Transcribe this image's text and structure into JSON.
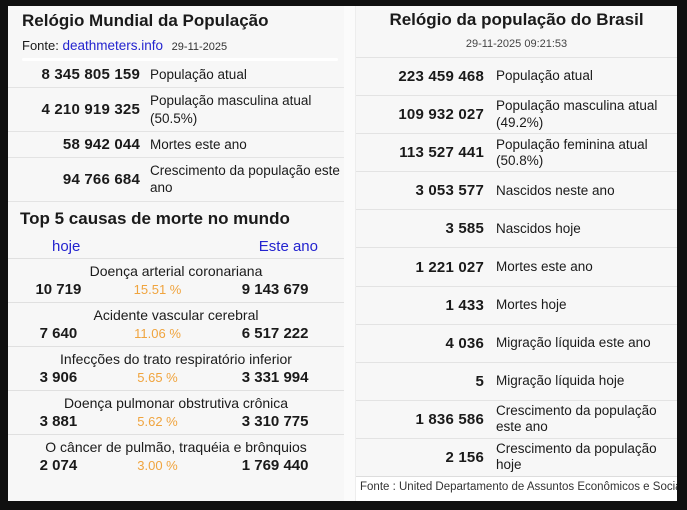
{
  "world": {
    "title": "Relógio Mundial da População",
    "source_label": "Fonte:",
    "source_link": "deathmeters.info",
    "source_date": "29-11-2025",
    "rows": [
      {
        "value": "8 345 805 159",
        "label": "População atual"
      },
      {
        "value": "4 210 919 325",
        "label": "População masculina atual (50.5%)"
      },
      {
        "value": "58 942 044",
        "label": "Mortes este ano"
      },
      {
        "value": "94 766 684",
        "label": "Crescimento da população este ano"
      }
    ],
    "top5": {
      "title": "Top 5 causas de morte no mundo",
      "col_today": "hoje",
      "col_year": "Este ano",
      "causes": [
        {
          "name": "Doença arterial coronariana",
          "today": "10 719",
          "percent": "15.51 %",
          "year": "9 143 679"
        },
        {
          "name": "Acidente vascular cerebral",
          "today": "7 640",
          "percent": "11.06 %",
          "year": "6 517 222"
        },
        {
          "name": "Infecções do trato respiratório inferior",
          "today": "3 906",
          "percent": "5.65 %",
          "year": "3 331 994"
        },
        {
          "name": "Doença pulmonar obstrutiva crônica",
          "today": "3 881",
          "percent": "5.62 %",
          "year": "3 310 775"
        },
        {
          "name": "O câncer de pulmão, traquéia e brônquios",
          "today": "2 074",
          "percent": "3.00 %",
          "year": "1 769 440"
        }
      ]
    }
  },
  "brazil": {
    "title": "Relógio da população do Brasil",
    "datetime": "29-11-2025 09:21:53",
    "rows": [
      {
        "value": "223 459 468",
        "label": "População atual"
      },
      {
        "value": "109 932 027",
        "label": "População masculina atual (49.2%)"
      },
      {
        "value": "113 527 441",
        "label": "População feminina atual (50.8%)"
      },
      {
        "value": "3 053 577",
        "label": "Nascidos neste ano"
      },
      {
        "value": "3 585",
        "label": "Nascidos hoje"
      },
      {
        "value": "1 221 027",
        "label": "Mortes este ano"
      },
      {
        "value": "1 433",
        "label": "Mortes hoje"
      },
      {
        "value": "4 036",
        "label": "Migração líquida este ano"
      },
      {
        "value": "5",
        "label": "Migração líquida hoje"
      },
      {
        "value": "1 836 586",
        "label": "Crescimento da população este ano"
      },
      {
        "value": "2 156",
        "label": "Crescimento da população hoje"
      }
    ],
    "source": "Fonte : United Departamento de Assuntos Econômicos e Sociais"
  },
  "colors": {
    "link_blue": "#2323cf",
    "percent_orange": "#f0a43e"
  }
}
